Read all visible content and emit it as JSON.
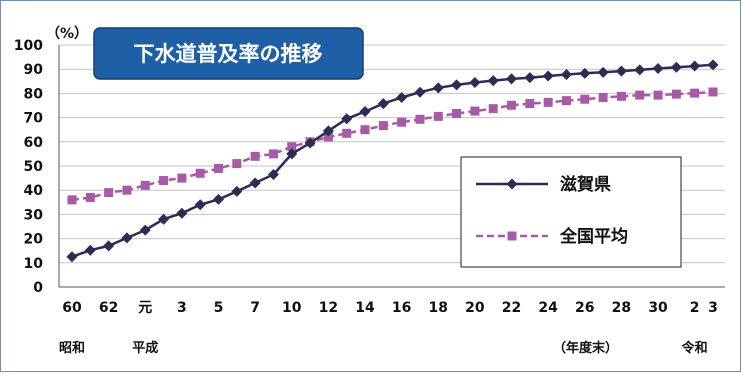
{
  "chart_data": {
    "type": "line",
    "title": "下水道普及率の推移",
    "y_unit": "（%）",
    "x_unit": "（年度末）",
    "ylim": [
      0,
      100
    ],
    "y_ticks": [
      "0",
      "10",
      "20",
      "30",
      "40",
      "50",
      "60",
      "70",
      "80",
      "90",
      "100"
    ],
    "x_tick_labels": [
      {
        "index": 0,
        "label": "60"
      },
      {
        "index": 2,
        "label": "62"
      },
      {
        "index": 4,
        "label": "元"
      },
      {
        "index": 6,
        "label": "3"
      },
      {
        "index": 8,
        "label": "5"
      },
      {
        "index": 10,
        "label": "7"
      },
      {
        "index": 12,
        "label": "10"
      },
      {
        "index": 14,
        "label": "12"
      },
      {
        "index": 16,
        "label": "14"
      },
      {
        "index": 18,
        "label": "16"
      },
      {
        "index": 20,
        "label": "18"
      },
      {
        "index": 22,
        "label": "20"
      },
      {
        "index": 24,
        "label": "22"
      },
      {
        "index": 26,
        "label": "24"
      },
      {
        "index": 28,
        "label": "26"
      },
      {
        "index": 30,
        "label": "28"
      },
      {
        "index": 32,
        "label": "30"
      },
      {
        "index": 34,
        "label": "2"
      },
      {
        "index": 35,
        "label": "3"
      }
    ],
    "era_labels": [
      {
        "index": 0,
        "label": "昭和"
      },
      {
        "index": 4,
        "label": "平成"
      },
      {
        "index": 34,
        "label": "令和"
      }
    ],
    "grid": true,
    "legend_position": "right",
    "series": [
      {
        "name": "滋賀県",
        "color": "#2b2d52",
        "marker": "diamond",
        "line_style": "solid",
        "values": [
          12.5,
          15.2,
          17.0,
          20.3,
          23.5,
          28.0,
          30.5,
          34.0,
          36.2,
          39.5,
          43.0,
          46.5,
          55.0,
          59.5,
          64.5,
          69.5,
          72.5,
          75.8,
          78.3,
          80.5,
          82.3,
          83.5,
          84.5,
          85.3,
          86.0,
          86.5,
          87.2,
          87.8,
          88.3,
          88.7,
          89.2,
          89.7,
          90.3,
          90.8,
          91.3,
          91.8
        ]
      },
      {
        "name": "全国平均",
        "color": "#a85aa6",
        "marker": "square",
        "line_style": "dashed",
        "values": [
          36.0,
          37.0,
          39.0,
          40.0,
          42.0,
          44.0,
          45.0,
          47.0,
          49.0,
          51.0,
          54.0,
          55.0,
          58.0,
          60.0,
          62.0,
          63.5,
          65.0,
          66.7,
          68.1,
          69.3,
          70.5,
          71.7,
          72.7,
          73.7,
          75.1,
          75.8,
          76.3,
          77.0,
          77.6,
          78.3,
          78.8,
          79.3,
          79.3,
          79.7,
          80.1,
          80.6
        ]
      }
    ]
  }
}
